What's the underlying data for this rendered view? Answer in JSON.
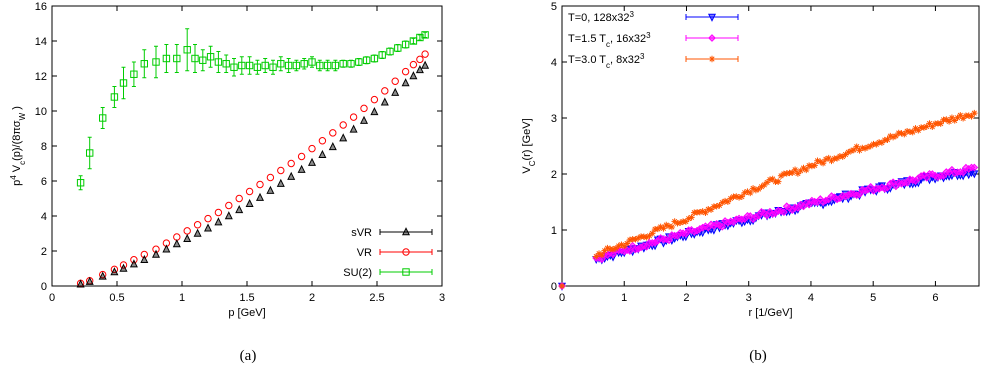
{
  "chart_data": [
    {
      "type": "scatter",
      "caption": "(a)",
      "xlabel": "p [GeV]",
      "ylabel_parts": [
        "p",
        "4",
        " V",
        "c",
        "(p)/(8πσ",
        "W",
        " )"
      ],
      "xlim": [
        0,
        3
      ],
      "ylim": [
        0,
        16
      ],
      "xticks": [
        "0",
        "0.5",
        "1",
        "1.5",
        "2",
        "2.5",
        "3"
      ],
      "yticks": [
        "0",
        "2",
        "4",
        "6",
        "8",
        "10",
        "12",
        "14",
        "16"
      ],
      "legend_position": "bottom-right",
      "series": [
        {
          "name": "sVR",
          "color": "#000000",
          "marker": "triangle-up-open",
          "x": [
            0.22,
            0.29,
            0.39,
            0.48,
            0.55,
            0.63,
            0.71,
            0.8,
            0.88,
            0.96,
            1.04,
            1.12,
            1.2,
            1.28,
            1.36,
            1.44,
            1.52,
            1.6,
            1.68,
            1.76,
            1.84,
            1.92,
            2.0,
            2.08,
            2.16,
            2.24,
            2.32,
            2.4,
            2.48,
            2.56,
            2.64,
            2.72,
            2.78,
            2.83,
            2.87
          ],
          "y": [
            0.1,
            0.25,
            0.55,
            0.8,
            1.0,
            1.25,
            1.5,
            1.8,
            2.1,
            2.4,
            2.7,
            3.0,
            3.3,
            3.65,
            4.0,
            4.35,
            4.7,
            5.05,
            5.45,
            5.85,
            6.25,
            6.65,
            7.05,
            7.5,
            7.95,
            8.45,
            8.95,
            9.45,
            9.95,
            10.5,
            11.05,
            11.6,
            12.0,
            12.35,
            12.6
          ]
        },
        {
          "name": "VR",
          "color": "#ff0000",
          "marker": "circle-open",
          "x": [
            0.22,
            0.29,
            0.39,
            0.48,
            0.55,
            0.63,
            0.71,
            0.8,
            0.88,
            0.96,
            1.04,
            1.12,
            1.2,
            1.28,
            1.36,
            1.44,
            1.52,
            1.6,
            1.68,
            1.76,
            1.84,
            1.92,
            2.0,
            2.08,
            2.16,
            2.24,
            2.32,
            2.4,
            2.48,
            2.56,
            2.64,
            2.72,
            2.78,
            2.83,
            2.87
          ],
          "y": [
            0.15,
            0.3,
            0.65,
            0.95,
            1.2,
            1.5,
            1.8,
            2.1,
            2.45,
            2.8,
            3.15,
            3.5,
            3.85,
            4.2,
            4.6,
            5.0,
            5.4,
            5.8,
            6.2,
            6.6,
            7.0,
            7.4,
            7.85,
            8.3,
            8.75,
            9.2,
            9.65,
            10.15,
            10.65,
            11.15,
            11.7,
            12.25,
            12.65,
            12.95,
            13.25
          ]
        },
        {
          "name": "SU(2)",
          "color": "#00cc00",
          "marker": "square-open",
          "x": [
            0.22,
            0.29,
            0.39,
            0.48,
            0.55,
            0.63,
            0.71,
            0.8,
            0.88,
            0.96,
            1.04,
            1.1,
            1.16,
            1.22,
            1.28,
            1.34,
            1.4,
            1.46,
            1.52,
            1.58,
            1.64,
            1.7,
            1.76,
            1.82,
            1.88,
            1.94,
            2.0,
            2.06,
            2.12,
            2.18,
            2.24,
            2.3,
            2.36,
            2.42,
            2.48,
            2.54,
            2.6,
            2.66,
            2.72,
            2.78,
            2.83,
            2.87
          ],
          "y": [
            5.9,
            7.6,
            9.6,
            10.8,
            11.6,
            12.1,
            12.7,
            12.8,
            13.0,
            13.0,
            13.5,
            13.0,
            12.9,
            13.1,
            12.8,
            12.7,
            12.5,
            12.6,
            12.6,
            12.5,
            12.6,
            12.5,
            12.7,
            12.6,
            12.6,
            12.7,
            12.8,
            12.6,
            12.6,
            12.6,
            12.7,
            12.7,
            12.8,
            12.9,
            13.0,
            13.2,
            13.4,
            13.6,
            13.8,
            14.0,
            14.2,
            14.35
          ],
          "err": [
            0.4,
            0.9,
            0.6,
            0.6,
            0.9,
            0.7,
            0.8,
            0.9,
            0.8,
            0.8,
            1.2,
            0.8,
            0.6,
            0.6,
            0.6,
            0.5,
            0.5,
            0.5,
            0.5,
            0.4,
            0.4,
            0.4,
            0.4,
            0.4,
            0.3,
            0.3,
            0.3,
            0.3,
            0.3,
            0.3,
            0.2,
            0.2,
            0.2,
            0.2,
            0.2,
            0.2,
            0.2,
            0.2,
            0.2,
            0.15,
            0.15,
            0.15
          ]
        }
      ]
    },
    {
      "type": "scatter",
      "caption": "(b)",
      "xlabel": "r [1/GeV]",
      "ylabel_parts": [
        "V",
        "C",
        "(r) [GeV]"
      ],
      "xlim": [
        0,
        6.7
      ],
      "ylim": [
        0,
        5
      ],
      "xticks": [
        "0",
        "1",
        "2",
        "3",
        "4",
        "5",
        "6"
      ],
      "yticks": [
        "0",
        "1",
        "2",
        "3",
        "4",
        "5"
      ],
      "legend_position": "top-left",
      "series": [
        {
          "name_parts": [
            "T=0, 128x32",
            "3",
            ""
          ],
          "color": "#0000ff",
          "marker": "triangle-down-open",
          "trend": [
            [
              0,
              0
            ],
            [
              0.55,
              0.48
            ],
            [
              1.0,
              0.62
            ],
            [
              2.0,
              0.92
            ],
            [
              3.0,
              1.2
            ],
            [
              4.0,
              1.45
            ],
            [
              5.0,
              1.72
            ],
            [
              6.0,
              1.96
            ],
            [
              6.65,
              2.05
            ]
          ]
        },
        {
          "name_parts": [
            "T=1.5 T",
            "c",
            ", 16x32",
            "3",
            ""
          ],
          "color": "#ff00ff",
          "marker": "diamond-open",
          "trend": [
            [
              0,
              0
            ],
            [
              0.55,
              0.5
            ],
            [
              1.0,
              0.64
            ],
            [
              2.0,
              0.94
            ],
            [
              3.0,
              1.22
            ],
            [
              4.0,
              1.48
            ],
            [
              5.0,
              1.74
            ],
            [
              6.0,
              1.98
            ],
            [
              6.65,
              2.1
            ]
          ]
        },
        {
          "name_parts": [
            "T=3.0 T",
            "c",
            ", 8x32",
            "3",
            ""
          ],
          "color": "#ff5500",
          "marker": "star",
          "trend": [
            [
              0,
              0
            ],
            [
              0.55,
              0.55
            ],
            [
              1.0,
              0.75
            ],
            [
              2.0,
              1.2
            ],
            [
              3.0,
              1.7
            ],
            [
              4.0,
              2.15
            ],
            [
              5.0,
              2.55
            ],
            [
              6.0,
              2.9
            ],
            [
              6.65,
              3.1
            ]
          ]
        }
      ]
    }
  ]
}
